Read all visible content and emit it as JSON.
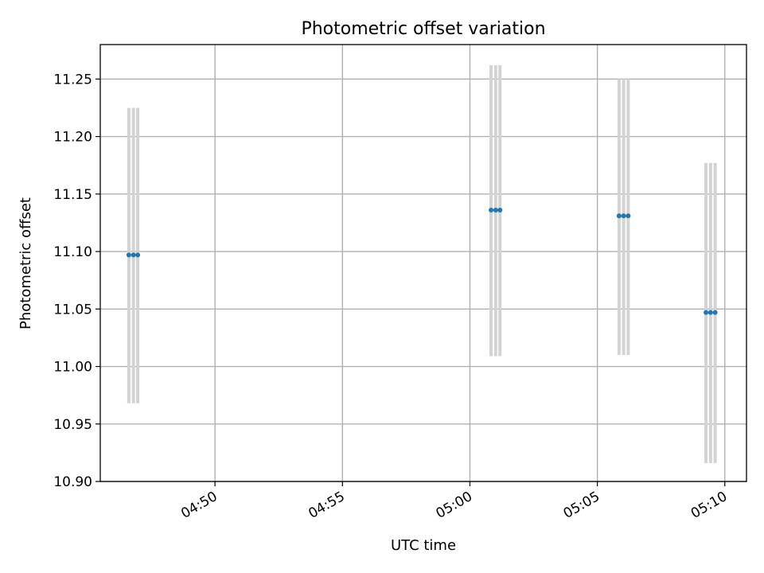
{
  "chart_data": {
    "type": "scatter",
    "title": "Photometric offset variation",
    "xlabel": "UTC time",
    "ylabel": "Photometric offset",
    "x_ticks": [
      "04:50",
      "04:55",
      "05:00",
      "05:05",
      "05:10"
    ],
    "x_tick_minutes": [
      290,
      295,
      300,
      305,
      310
    ],
    "xlim_minutes": [
      285.5,
      310.85
    ],
    "y_ticks": [
      "10.90",
      "10.95",
      "11.00",
      "11.05",
      "11.10",
      "11.15",
      "11.20",
      "11.25"
    ],
    "ylim": [
      10.9,
      11.28
    ],
    "grid": true,
    "series": [
      {
        "points": [
          {
            "x_minutes": 286.62,
            "y": 11.097,
            "err_low": 10.968,
            "err_high": 11.225
          },
          {
            "x_minutes": 286.8,
            "y": 11.097,
            "err_low": 10.968,
            "err_high": 11.225
          },
          {
            "x_minutes": 286.97,
            "y": 11.097,
            "err_low": 10.968,
            "err_high": 11.225
          },
          {
            "x_minutes": 300.83,
            "y": 11.136,
            "err_low": 11.009,
            "err_high": 11.262
          },
          {
            "x_minutes": 301.01,
            "y": 11.136,
            "err_low": 11.009,
            "err_high": 11.262
          },
          {
            "x_minutes": 301.18,
            "y": 11.136,
            "err_low": 11.009,
            "err_high": 11.262
          },
          {
            "x_minutes": 305.85,
            "y": 11.131,
            "err_low": 11.01,
            "err_high": 11.25
          },
          {
            "x_minutes": 306.03,
            "y": 11.131,
            "err_low": 11.01,
            "err_high": 11.25
          },
          {
            "x_minutes": 306.21,
            "y": 11.131,
            "err_low": 11.01,
            "err_high": 11.25
          },
          {
            "x_minutes": 309.26,
            "y": 11.047,
            "err_low": 10.916,
            "err_high": 11.177
          },
          {
            "x_minutes": 309.44,
            "y": 11.047,
            "err_low": 10.916,
            "err_high": 11.177
          },
          {
            "x_minutes": 309.62,
            "y": 11.047,
            "err_low": 10.916,
            "err_high": 11.177
          }
        ]
      }
    ],
    "colors": {
      "point": "#1f77b4",
      "errorbar": "#d3d3d3",
      "grid": "#b0b0b0",
      "axes": "#000000"
    }
  }
}
